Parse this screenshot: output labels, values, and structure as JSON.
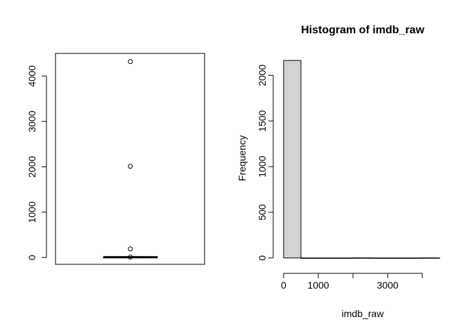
{
  "chart_data": [
    {
      "type": "box",
      "title": "",
      "xlabel": "",
      "ylabel": "",
      "ylim": [
        -150,
        4500
      ],
      "y_ticks": [
        0,
        1000,
        2000,
        3000,
        4000
      ],
      "y_tick_labels": [
        "0",
        "1000",
        "2000",
        "3000",
        "4000"
      ],
      "box": {
        "min": 0,
        "q1": 2,
        "median": 6,
        "q3": 9,
        "max": 20
      },
      "outliers": [
        4320,
        2010,
        190,
        10
      ],
      "box_fill": "#ffffff",
      "line_color": "#000000"
    },
    {
      "type": "bar",
      "subtype": "histogram",
      "title": "Histogram of imdb_raw",
      "xlabel": "imdb_raw",
      "ylabel": "Frequency",
      "xlim": [
        -40,
        4580
      ],
      "ylim": [
        -70,
        2240
      ],
      "bins": [
        {
          "from": 0,
          "to": 500,
          "count": 2163
        },
        {
          "from": 500,
          "to": 1000,
          "count": 0
        },
        {
          "from": 1000,
          "to": 1500,
          "count": 0
        },
        {
          "from": 1500,
          "to": 2000,
          "count": 0
        },
        {
          "from": 2000,
          "to": 2500,
          "count": 1
        },
        {
          "from": 2500,
          "to": 3000,
          "count": 0
        },
        {
          "from": 3000,
          "to": 3500,
          "count": 0
        },
        {
          "from": 3500,
          "to": 4000,
          "count": 0
        },
        {
          "from": 4000,
          "to": 4500,
          "count": 1
        }
      ],
      "x_ticks": [
        0,
        1000,
        2000,
        3000,
        4000
      ],
      "x_tick_labels": [
        "0",
        "1000",
        "",
        "3000",
        ""
      ],
      "y_ticks": [
        0,
        500,
        1000,
        1500,
        2000
      ],
      "y_tick_labels": [
        "0",
        "500",
        "1000",
        "1500",
        "2000"
      ],
      "bar_fill": "#d3d3d3",
      "line_color": "#000000"
    }
  ]
}
